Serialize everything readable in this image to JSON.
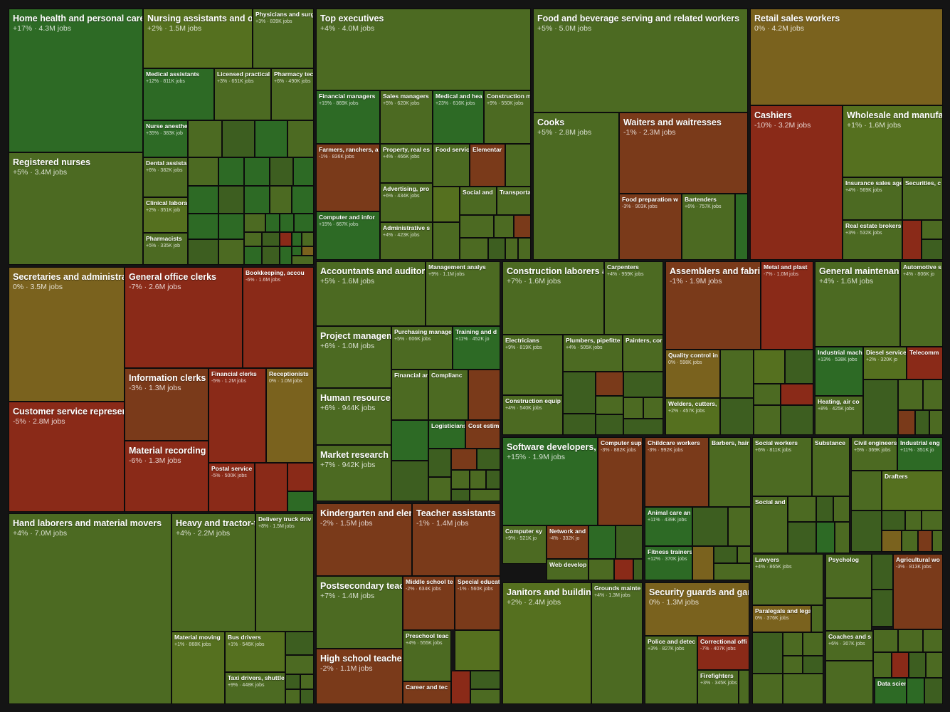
{
  "chart_data": {
    "type": "treemap",
    "measure": "jobs",
    "change_unit": "%",
    "colors": {
      "high_growth": "#2d6a25",
      "growth": "#4c6a22",
      "flat": "#7a621e",
      "decline": "#7a3a1a",
      "strong_decline": "#8a2a18"
    },
    "tiles": [
      {
        "name": "Home health and personal care",
        "stat": "+17% · 4.3M jobs",
        "change": 17,
        "jobs": 4300000
      },
      {
        "name": "Registered nurses",
        "stat": "+5% · 3.4M jobs",
        "change": 5,
        "jobs": 3400000
      },
      {
        "name": "Nursing assistants and or",
        "stat": "+2% · 1.5M jobs",
        "change": 2,
        "jobs": 1500000
      },
      {
        "name": "Physicians and surg",
        "stat": "+3% · 839K jobs",
        "change": 3,
        "jobs": 839000
      },
      {
        "name": "Medical assistants",
        "stat": "+12% · 811K jobs",
        "change": 12,
        "jobs": 811000
      },
      {
        "name": "Licensed practical",
        "stat": "+3% · 651K jobs",
        "change": 3,
        "jobs": 651000
      },
      {
        "name": "Pharmacy tec",
        "stat": "+6% · 490K jobs",
        "change": 6,
        "jobs": 490000
      },
      {
        "name": "Nurse anesthe",
        "stat": "+35% · 383K job",
        "change": 35,
        "jobs": 383000
      },
      {
        "name": "Dental assista",
        "stat": "+6% · 382K jobs",
        "change": 6,
        "jobs": 382000
      },
      {
        "name": "Clinical labora",
        "stat": "+2% · 351K job",
        "change": 2,
        "jobs": 351000
      },
      {
        "name": "Pharmacists",
        "stat": "+5% · 335K job",
        "change": 5,
        "jobs": 335000
      },
      {
        "name": "Top executives",
        "stat": "+4% · 4.0M jobs",
        "change": 4,
        "jobs": 4000000
      },
      {
        "name": "Financial managers",
        "stat": "+15% · 869K jobs",
        "change": 15,
        "jobs": 869000
      },
      {
        "name": "Sales managers",
        "stat": "+5% · 620K jobs",
        "change": 5,
        "jobs": 620000
      },
      {
        "name": "Medical and hea",
        "stat": "+23% · 616K jobs",
        "change": 23,
        "jobs": 616000
      },
      {
        "name": "Construction m",
        "stat": "+9% · 550K jobs",
        "change": 9,
        "jobs": 550000
      },
      {
        "name": "Farmers, ranchers, a",
        "stat": "-1% · 836K jobs",
        "change": -1,
        "jobs": 836000
      },
      {
        "name": "Property, real es",
        "stat": "+4% · 466K jobs",
        "change": 4,
        "jobs": 466000
      },
      {
        "name": "Food servic",
        "stat": "",
        "change": 5
      },
      {
        "name": "Elementar",
        "stat": "",
        "change": -4
      },
      {
        "name": "Advertising, pro",
        "stat": "+6% · 434K jobs",
        "change": 6,
        "jobs": 434000
      },
      {
        "name": "Social and",
        "stat": "",
        "change": 5
      },
      {
        "name": "Transporta",
        "stat": "",
        "change": 4
      },
      {
        "name": "Computer and infor",
        "stat": "+15% · 667K jobs",
        "change": 15,
        "jobs": 667000
      },
      {
        "name": "Administrative s",
        "stat": "+4% · 423K jobs",
        "change": 4,
        "jobs": 423000
      },
      {
        "name": "Food and beverage serving and related workers",
        "stat": "+5% · 5.0M jobs",
        "change": 5,
        "jobs": 5000000
      },
      {
        "name": "Cooks",
        "stat": "+5% · 2.8M jobs",
        "change": 5,
        "jobs": 2800000
      },
      {
        "name": "Waiters and waitresses",
        "stat": "-1% · 2.3M jobs",
        "change": -1,
        "jobs": 2300000
      },
      {
        "name": "Food preparation w",
        "stat": "-3% · 903K jobs",
        "change": -3,
        "jobs": 903000
      },
      {
        "name": "Bartenders",
        "stat": "+6% · 757K jobs",
        "change": 6,
        "jobs": 757000
      },
      {
        "name": "Retail sales workers",
        "stat": "0% · 4.2M jobs",
        "change": 0,
        "jobs": 4200000
      },
      {
        "name": "Cashiers",
        "stat": "-10% · 3.2M jobs",
        "change": -10,
        "jobs": 3200000
      },
      {
        "name": "Wholesale and manufac",
        "stat": "+1% · 1.6M jobs",
        "change": 1,
        "jobs": 1600000
      },
      {
        "name": "Insurance sales age",
        "stat": "+4% · 569K jobs",
        "change": 4,
        "jobs": 569000
      },
      {
        "name": "Securities, c",
        "stat": "",
        "change": 5
      },
      {
        "name": "Real estate brokers",
        "stat": "+3% · 532K jobs",
        "change": 3,
        "jobs": 532000
      },
      {
        "name": "Secretaries and administrat",
        "stat": "0% · 3.5M jobs",
        "change": 0,
        "jobs": 3500000
      },
      {
        "name": "Customer service represent",
        "stat": "-5% · 2.8M jobs",
        "change": -5,
        "jobs": 2800000
      },
      {
        "name": "General office clerks",
        "stat": "-7% · 2.6M jobs",
        "change": -7,
        "jobs": 2600000
      },
      {
        "name": "Bookkeeping, accou",
        "stat": "-6% · 1.6M jobs",
        "change": -6,
        "jobs": 1600000
      },
      {
        "name": "Information clerks",
        "stat": "-3% · 1.3M jobs",
        "change": -3,
        "jobs": 1300000
      },
      {
        "name": "Financial clerks",
        "stat": "-5% · 1.2M jobs",
        "change": -5,
        "jobs": 1200000
      },
      {
        "name": "Receptionists",
        "stat": "0% · 1.0M jobs",
        "change": 0,
        "jobs": 1000000
      },
      {
        "name": "Material recording cl",
        "stat": "-6% · 1.3M jobs",
        "change": -6,
        "jobs": 1300000
      },
      {
        "name": "Postal service",
        "stat": "-5% · 500K jobs",
        "change": -5,
        "jobs": 500000
      },
      {
        "name": "Accountants and auditors",
        "stat": "+5% · 1.6M jobs",
        "change": 5,
        "jobs": 1600000
      },
      {
        "name": "Management analys",
        "stat": "+9% · 1.1M jobs",
        "change": 9,
        "jobs": 1100000
      },
      {
        "name": "Project management",
        "stat": "+6% · 1.0M jobs",
        "change": 6,
        "jobs": 1000000
      },
      {
        "name": "Purchasing manage",
        "stat": "+5% · 606K jobs",
        "change": 5,
        "jobs": 606000
      },
      {
        "name": "Training and d",
        "stat": "+11% · 452K jo",
        "change": 11,
        "jobs": 452000
      },
      {
        "name": "Financial ar",
        "stat": "",
        "change": 5
      },
      {
        "name": "Complianc",
        "stat": "",
        "change": 4
      },
      {
        "name": "Human resources sp",
        "stat": "+6% · 944K jobs",
        "change": 6,
        "jobs": 944000
      },
      {
        "name": "Logisticians",
        "stat": "",
        "change": 10
      },
      {
        "name": "Cost estim",
        "stat": "",
        "change": -2
      },
      {
        "name": "Market research ana",
        "stat": "+7% · 942K jobs",
        "change": 7,
        "jobs": 942000
      },
      {
        "name": "Construction laborers a",
        "stat": "+7% · 1.6M jobs",
        "change": 7,
        "jobs": 1600000
      },
      {
        "name": "Carpenters",
        "stat": "+4% · 959K jobs",
        "change": 4,
        "jobs": 959000
      },
      {
        "name": "Electricians",
        "stat": "+9% · 819K jobs",
        "change": 9,
        "jobs": 819000
      },
      {
        "name": "Plumbers, pipefitte",
        "stat": "+4% · 505K jobs",
        "change": 4,
        "jobs": 505000
      },
      {
        "name": "Painters, cor",
        "stat": "",
        "change": 3
      },
      {
        "name": "Construction equip",
        "stat": "+4% · 540K jobs",
        "change": 4,
        "jobs": 540000
      },
      {
        "name": "Assemblers and fabric",
        "stat": "-1% · 1.9M jobs",
        "change": -1,
        "jobs": 1900000
      },
      {
        "name": "Metal and plast",
        "stat": "-7% · 1.0M jobs",
        "change": -7,
        "jobs": 1000000
      },
      {
        "name": "Quality control in",
        "stat": "0% · 598K jobs",
        "change": 0,
        "jobs": 598000
      },
      {
        "name": "Welders, cutters,",
        "stat": "+2% · 457K jobs",
        "change": 2,
        "jobs": 457000
      },
      {
        "name": "General maintenanc",
        "stat": "+4% · 1.6M jobs",
        "change": 4,
        "jobs": 1600000
      },
      {
        "name": "Automotive s",
        "stat": "+4% · 806K jo",
        "change": 4,
        "jobs": 806000
      },
      {
        "name": "Industrial mach",
        "stat": "+13% · 538K jobs",
        "change": 13,
        "jobs": 538000
      },
      {
        "name": "Diesel service",
        "stat": "+2% · 320K jo",
        "change": 2,
        "jobs": 320000
      },
      {
        "name": "Telecomm",
        "stat": "",
        "change": -6
      },
      {
        "name": "Heating, air co",
        "stat": "+8% · 425K jobs",
        "change": 8,
        "jobs": 425000
      },
      {
        "name": "Software developers, q",
        "stat": "+15% · 1.9M jobs",
        "change": 15,
        "jobs": 1900000
      },
      {
        "name": "Computer sup",
        "stat": "-3% · 882K jobs",
        "change": -3,
        "jobs": 882000
      },
      {
        "name": "Computer sy",
        "stat": "+9% · 521K jo",
        "change": 9,
        "jobs": 521000
      },
      {
        "name": "Network and",
        "stat": "-4% · 332K jo",
        "change": -4,
        "jobs": 332000
      },
      {
        "name": "Web develop",
        "stat": "",
        "change": 7
      },
      {
        "name": "Childcare workers",
        "stat": "-3% · 992K jobs",
        "change": -3,
        "jobs": 992000
      },
      {
        "name": "Barbers, hair",
        "stat": "",
        "change": 4
      },
      {
        "name": "Animal care an",
        "stat": "+11% · 439K jobs",
        "change": 11,
        "jobs": 439000
      },
      {
        "name": "Fitness trainers",
        "stat": "+12% · 370K jobs",
        "change": 12,
        "jobs": 370000
      },
      {
        "name": "Social workers",
        "stat": "+6% · 811K jobs",
        "change": 6,
        "jobs": 811000
      },
      {
        "name": "Substance",
        "stat": "",
        "change": 8
      },
      {
        "name": "Social and",
        "stat": "",
        "change": 5
      },
      {
        "name": "Civil engineers",
        "stat": "+5% · 369K jobs",
        "change": 5,
        "jobs": 369000
      },
      {
        "name": "Industrial eng",
        "stat": "+11% · 351K jo",
        "change": 11,
        "jobs": 351000
      },
      {
        "name": "Drafters",
        "stat": "",
        "change": 1
      },
      {
        "name": "Hand laborers and material movers",
        "stat": "+4% · 7.0M jobs",
        "change": 4,
        "jobs": 7000000
      },
      {
        "name": "Heavy and tractor-tra",
        "stat": "+4% · 2.2M jobs",
        "change": 4,
        "jobs": 2200000
      },
      {
        "name": "Delivery truck driv",
        "stat": "+8% · 1.5M jobs",
        "change": 8,
        "jobs": 1500000
      },
      {
        "name": "Material moving",
        "stat": "+1% · 868K jobs",
        "change": 1,
        "jobs": 868000
      },
      {
        "name": "Bus drivers",
        "stat": "+1% · 546K jobs",
        "change": 1,
        "jobs": 546000
      },
      {
        "name": "Taxi drivers, shuttle",
        "stat": "+9% · 448K jobs",
        "change": 9,
        "jobs": 448000
      },
      {
        "name": "Kindergarten and elen",
        "stat": "-2% · 1.5M jobs",
        "change": -2,
        "jobs": 1500000
      },
      {
        "name": "Teacher assistants",
        "stat": "-1% · 1.4M jobs",
        "change": -1,
        "jobs": 1400000
      },
      {
        "name": "Postsecondary teach",
        "stat": "+7% · 1.4M jobs",
        "change": 7,
        "jobs": 1400000
      },
      {
        "name": "Middle school te",
        "stat": "-2% · 634K jobs",
        "change": -2,
        "jobs": 634000
      },
      {
        "name": "Special educat",
        "stat": "-1% · 560K jobs",
        "change": -1,
        "jobs": 560000
      },
      {
        "name": "Preschool teac",
        "stat": "+4% · 555K jobs",
        "change": 4,
        "jobs": 555000
      },
      {
        "name": "Career and tec",
        "stat": "",
        "change": -1
      },
      {
        "name": "High school teachers",
        "stat": "-2% · 1.1M jobs",
        "change": -2,
        "jobs": 1100000
      },
      {
        "name": "Janitors and building",
        "stat": "+2% · 2.4M jobs",
        "change": 2,
        "jobs": 2400000
      },
      {
        "name": "Grounds mainte",
        "stat": "+4% · 1.3M jobs",
        "change": 4,
        "jobs": 1300000
      },
      {
        "name": "Security guards and gam",
        "stat": "0% · 1.3M jobs",
        "change": 0,
        "jobs": 1300000
      },
      {
        "name": "Police and detec",
        "stat": "+3% · 827K jobs",
        "change": 3,
        "jobs": 827000
      },
      {
        "name": "Correctional offi",
        "stat": "-7% · 407K jobs",
        "change": -7,
        "jobs": 407000
      },
      {
        "name": "Firefighters",
        "stat": "+3% · 345K jobs",
        "change": 3,
        "jobs": 345000
      },
      {
        "name": "Lawyers",
        "stat": "+4% · 865K jobs",
        "change": 4,
        "jobs": 865000
      },
      {
        "name": "Paralegals and lega",
        "stat": "0% · 376K jobs",
        "change": 0,
        "jobs": 376000
      },
      {
        "name": "Psycholog",
        "stat": "",
        "change": 6
      },
      {
        "name": "Agricultural wo",
        "stat": "-3% · 813K jobs",
        "change": -3,
        "jobs": 813000
      },
      {
        "name": "Coaches and s",
        "stat": "+6% · 307K jobs",
        "change": 6,
        "jobs": 307000
      },
      {
        "name": "Data scienti",
        "stat": "",
        "change": 35
      }
    ]
  }
}
